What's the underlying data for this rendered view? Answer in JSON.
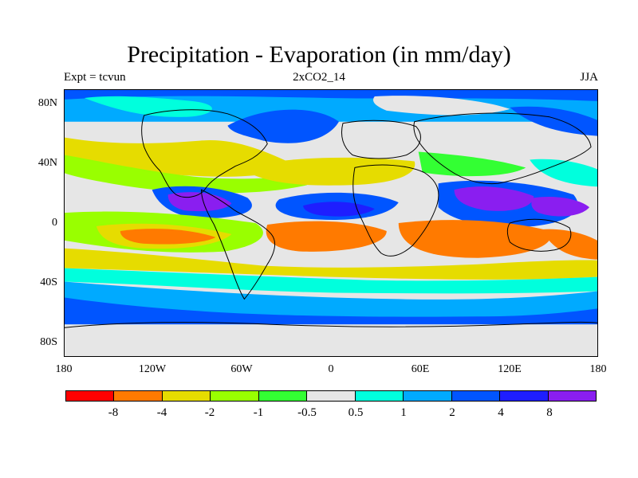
{
  "title": "Precipitation - Evaporation (in mm/day)",
  "left_subtitle": "Expt = tcvun",
  "center_subtitle": "2xCO2_14",
  "right_subtitle": "JJA",
  "map": {
    "lat_ticks": [
      "80N",
      "40N",
      "0",
      "40S",
      "80S"
    ],
    "lon_ticks": [
      "180",
      "120W",
      "60W",
      "0",
      "60E",
      "120E",
      "180"
    ]
  },
  "colorbar": {
    "colors": [
      "#ff0000",
      "#ff7a00",
      "#e6dc00",
      "#99ff00",
      "#33ff33",
      "#e6e6e6",
      "#00ffdd",
      "#00aaff",
      "#0055ff",
      "#1e1eff",
      "#8a1ef0"
    ],
    "labels": [
      "-8",
      "-4",
      "-2",
      "-1",
      "-0.5",
      "0.5",
      "1",
      "2",
      "4",
      "8"
    ]
  }
}
